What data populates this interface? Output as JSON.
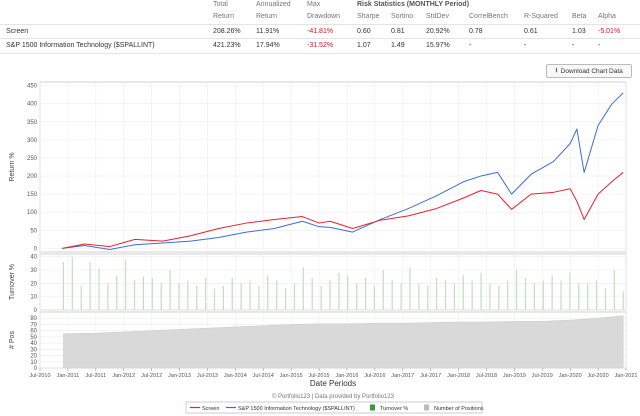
{
  "stats": {
    "headers": {
      "total": [
        "Total",
        "Return"
      ],
      "annualized": [
        "Annualized",
        "Return"
      ],
      "max": [
        "Max",
        "Drawdown"
      ],
      "risk_title": "Risk Statistics (MONTHLY Period)",
      "sharpe": "Sharpe",
      "sortino": "Sortino",
      "stddev": "StdDev",
      "correl": "CorrelBench",
      "rsq": "R-Squared",
      "beta": "Beta",
      "alpha": "Alpha"
    },
    "rows": [
      {
        "name": "Screen",
        "total": "208.26%",
        "annualized": "11.91%",
        "drawdown": "-41.81%",
        "sharpe": "0.60",
        "sortino": "0.81",
        "stddev": "20.92%",
        "correl": "0.78",
        "rsq": "0.61",
        "beta": "1.03",
        "alpha": "-5.01%"
      },
      {
        "name": "S&P 1500 Information Technology ($SPALLINT)",
        "total": "421.23%",
        "annualized": "17.94%",
        "drawdown": "-31.52%",
        "sharpe": "1.07",
        "sortino": "1.49",
        "stddev": "15.97%",
        "correl": "-",
        "rsq": "-",
        "beta": "-",
        "alpha": "-"
      }
    ]
  },
  "download_label": "Download Chart Data",
  "download_icon": "download-icon",
  "colors": {
    "screen": "#e8212b",
    "bench": "#3b6fd4",
    "bars": "#bfe0bf",
    "positions": "#d9d9d9"
  },
  "chart_data": [
    {
      "type": "line",
      "ylabel": "Return %",
      "ylim": [
        -10,
        460
      ],
      "yticks": [
        0,
        50,
        100,
        150,
        200,
        250,
        300,
        350,
        400,
        450
      ],
      "x": [
        2010.9,
        2011.3,
        2011.75,
        2012.2,
        2012.7,
        2013.2,
        2013.7,
        2014.2,
        2014.7,
        2015.2,
        2015.5,
        2015.7,
        2016.1,
        2016.6,
        2017.1,
        2017.6,
        2018.1,
        2018.4,
        2018.7,
        2018.95,
        2019.3,
        2019.7,
        2020.0,
        2020.12,
        2020.25,
        2020.5,
        2020.75,
        2020.95
      ],
      "series": [
        {
          "name": "Screen",
          "values": [
            0,
            12,
            5,
            25,
            20,
            35,
            55,
            70,
            80,
            88,
            70,
            75,
            55,
            78,
            90,
            110,
            140,
            160,
            150,
            108,
            150,
            155,
            165,
            130,
            80,
            150,
            185,
            210
          ]
        },
        {
          "name": "S&P 1500 Information Technology ($SPALLINT)",
          "values": [
            0,
            8,
            -3,
            10,
            15,
            20,
            30,
            45,
            55,
            75,
            60,
            58,
            45,
            80,
            110,
            145,
            185,
            200,
            210,
            150,
            205,
            240,
            290,
            330,
            210,
            340,
            400,
            430
          ]
        }
      ]
    },
    {
      "type": "bar",
      "ylabel": "Turnover %",
      "ylim": [
        0,
        42
      ],
      "yticks": [
        0,
        10,
        20,
        30,
        40
      ],
      "series": [
        {
          "name": "Turnover %",
          "values": [
            36,
            40,
            18,
            36,
            31,
            20,
            26,
            38,
            22,
            25,
            24,
            20,
            30,
            20,
            22,
            18,
            24,
            16,
            18,
            24,
            20,
            22,
            18,
            26,
            22,
            16,
            20,
            32,
            24,
            18,
            22,
            28,
            26,
            20,
            24,
            18,
            30,
            22,
            20,
            32,
            20,
            18,
            24,
            22,
            20,
            26,
            22,
            28,
            20,
            18,
            22,
            30,
            24,
            20,
            22,
            26,
            22,
            28,
            20,
            20,
            22,
            16,
            30,
            14
          ]
        }
      ]
    },
    {
      "type": "area",
      "ylabel": "# Pos",
      "ylim": [
        0,
        90
      ],
      "yticks": [
        0,
        10,
        20,
        30,
        40,
        50,
        60,
        70,
        80
      ],
      "x": [
        2010.92,
        2011.5,
        2012.0,
        2012.5,
        2013.0,
        2013.5,
        2014.0,
        2014.5,
        2015.0,
        2015.5,
        2016.0,
        2016.5,
        2017.0,
        2017.5,
        2018.0,
        2018.5,
        2019.0,
        2019.5,
        2020.0,
        2020.5,
        2020.95
      ],
      "series": [
        {
          "name": "Number of Positions",
          "values": [
            55,
            56,
            58,
            60,
            62,
            64,
            66,
            68,
            70,
            71,
            71,
            72,
            72,
            73,
            74,
            74,
            75,
            75,
            77,
            80,
            84
          ]
        }
      ]
    }
  ],
  "xaxis": {
    "label": "Date Periods",
    "range": [
      2010.5,
      2021.0
    ],
    "ticks": [
      "Jul-2010",
      "Jan-2011",
      "Jul-2011",
      "Jan-2012",
      "Jul-2012",
      "Jan-2013",
      "Jul-2013",
      "Jan-2014",
      "Jul-2014",
      "Jan-2015",
      "Jul-2015",
      "Jan-2016",
      "Jul-2016",
      "Jan-2017",
      "Jul-2017",
      "Jan-2018",
      "Jul-2018",
      "Jan-2019",
      "Jul-2019",
      "Jan-2020",
      "Jul-2020",
      "Jan-2021"
    ],
    "tick_values": [
      2010.5,
      2011.0,
      2011.5,
      2012.0,
      2012.5,
      2013.0,
      2013.5,
      2014.0,
      2014.5,
      2015.0,
      2015.5,
      2016.0,
      2016.5,
      2017.0,
      2017.5,
      2018.0,
      2018.5,
      2019.0,
      2019.5,
      2020.0,
      2020.5,
      2021.0
    ]
  },
  "credit": "© Portfolio123 | Data provided by Portfolio123",
  "legend": [
    {
      "label": "Screen",
      "kind": "line",
      "color": "#e8212b"
    },
    {
      "label": "S&P 1500 Information Technology ($SPALLINT)",
      "kind": "line",
      "color": "#3b6fd4"
    },
    {
      "label": "Turnover %",
      "kind": "box",
      "color": "#3a9a3a"
    },
    {
      "label": "Number of Positions",
      "kind": "box",
      "color": "#bbbbbb"
    }
  ]
}
